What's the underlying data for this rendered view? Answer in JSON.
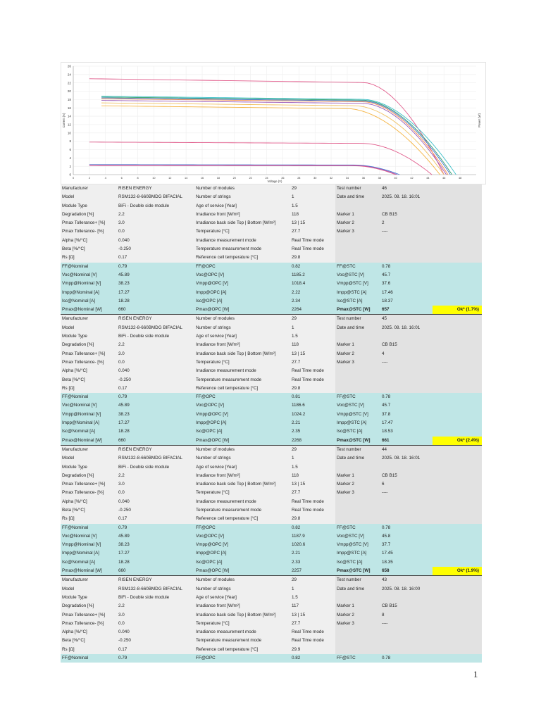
{
  "chart_data": {
    "type": "line",
    "xlabel": "Voltage (V)",
    "ylabel": "Current (A)",
    "y2label": "Power (W)",
    "xlim": [
      0,
      50
    ],
    "ylim": [
      0,
      26
    ],
    "x_ticks": [
      "0",
      "2",
      "4",
      "6",
      "8",
      "10",
      "12",
      "14",
      "16",
      "18",
      "20",
      "22",
      "24",
      "26",
      "28",
      "30",
      "32",
      "34",
      "36",
      "38",
      "40",
      "42",
      "44",
      "46",
      "48"
    ],
    "y_ticks": [
      "0",
      "2",
      "4",
      "6",
      "8",
      "10",
      "12",
      "14",
      "16",
      "18",
      "20",
      "22",
      "24",
      "26"
    ],
    "grid": true,
    "series": [
      {
        "color": "#e05a8a",
        "isc": 23.0,
        "voc": 46.0,
        "vstart": 2.0,
        "knee": 36
      },
      {
        "color": "#e05a8a",
        "isc": 7.8,
        "voc": 44.5,
        "vstart": 2.0,
        "knee": 36
      },
      {
        "color": "#3bbfc8",
        "isc": 18.8,
        "voc": 47.5,
        "vstart": 3.5,
        "knee": 36
      },
      {
        "color": "#2e9e6a",
        "isc": 18.6,
        "voc": 47.0,
        "vstart": 3.5,
        "knee": 36
      },
      {
        "color": "#4878d0",
        "isc": 18.4,
        "voc": 46.8,
        "vstart": 3.5,
        "knee": 36
      },
      {
        "color": "#f28c4a",
        "isc": 18.2,
        "voc": 46.5,
        "vstart": 3.5,
        "knee": 36
      },
      {
        "color": "#9b59b6",
        "isc": 17.8,
        "voc": 46.3,
        "vstart": 3.5,
        "knee": 36
      },
      {
        "color": "#f0c060",
        "isc": 17.2,
        "voc": 46.0,
        "vstart": 3.5,
        "knee": 35
      },
      {
        "color": "#f5b340",
        "isc": 16.5,
        "voc": 45.5,
        "vstart": 3.5,
        "knee": 34
      },
      {
        "color": "#4878d0",
        "isc": 2.4,
        "voc": 40.5,
        "vstart": 2.0,
        "knee": 35
      },
      {
        "color": "#9b59b6",
        "isc": 2.3,
        "voc": 40.2,
        "vstart": 2.0,
        "knee": 35
      },
      {
        "color": "#e05a8a",
        "isc": 2.2,
        "voc": 40.0,
        "vstart": 2.0,
        "knee": 35
      }
    ]
  },
  "blocks": [
    {
      "gray": [
        [
          "Manufacturer",
          "RISEN ENERGY",
          "Number of modules",
          "29",
          "Test number",
          "46"
        ],
        [
          "Model",
          "RSM132-8-660BMDG BIFACIAL",
          "Number of strings",
          "1",
          "Date and time",
          "2025. 08. 18. 16:01"
        ],
        [
          "Module Type",
          "BiFi - Double side module",
          "Age of service [Year]",
          "1.5",
          "",
          ""
        ],
        [
          "Degradation [%]",
          "2.2",
          "Irradiance front [W/m²]",
          "118",
          "Marker 1",
          "CB B15"
        ],
        [
          "Pmax Tollerance+ [%]",
          "3.0",
          "Irradiance back side Top | Bottom [W/m²]",
          "13 | 15",
          "Marker 2",
          "2"
        ],
        [
          "Pmax Tollerance- [%]",
          "0.0",
          "Temperature [°C]",
          "27.7",
          "Marker 3",
          "----"
        ],
        [
          "Alpha [%/°C]",
          "0.040",
          "Irradiance measurement mode",
          "Real Time mode",
          "",
          ""
        ],
        [
          "Beta [%/°C]",
          "-0.250",
          "Temperature measurement mode",
          "Real Time mode",
          "",
          ""
        ],
        [
          "Rs [Ω]",
          "0.17",
          "Reference cell temperature [°C]",
          "29.8",
          "",
          ""
        ]
      ],
      "teal": [
        [
          "FF@Nominal",
          "0.79",
          "FF@OPC",
          "0.82",
          "FF@STC",
          "0.78"
        ],
        [
          "Voc@Nominal [V]",
          "45.89",
          "Voc@OPC [V]",
          "1185.2",
          "Voc@STC [V]",
          "45.7"
        ],
        [
          "Vmpp@Nominal [V]",
          "38.23",
          "Vmpp@OPC [V]",
          "1018.4",
          "Vmpp@STC [V]",
          "37.6"
        ],
        [
          "Impp@Nominal [A]",
          "17.27",
          "Impp@OPC [A]",
          "2.22",
          "Impp@STC [A]",
          "17.46"
        ],
        [
          "Isc@Nominal [A]",
          "18.28",
          "Isc@OPC [A]",
          "2.34",
          "Isc@STC [A]",
          "18.37"
        ],
        [
          "Pmax@Nominal [W]",
          "660",
          "Pmax@OPC [W]",
          "2264",
          "Pmax@STC [W]",
          "657"
        ]
      ],
      "result": "Ok* (1.7%)"
    },
    {
      "gray": [
        [
          "Manufacturer",
          "RISEN ENERGY",
          "Number of modules",
          "29",
          "Test number",
          "45"
        ],
        [
          "Model",
          "RSM132-8-660BMDG BIFACIAL",
          "Number of strings",
          "1",
          "Date and time",
          "2025. 08. 18. 16:01"
        ],
        [
          "Module Type",
          "BiFi - Double side module",
          "Age of service [Year]",
          "1.5",
          "",
          ""
        ],
        [
          "Degradation [%]",
          "2.2",
          "Irradiance front [W/m²]",
          "118",
          "Marker 1",
          "CB B15"
        ],
        [
          "Pmax Tollerance+ [%]",
          "3.0",
          "Irradiance back side Top | Bottom [W/m²]",
          "13 | 15",
          "Marker 2",
          "4"
        ],
        [
          "Pmax Tollerance- [%]",
          "0.0",
          "Temperature [°C]",
          "27.7",
          "Marker 3",
          "----"
        ],
        [
          "Alpha [%/°C]",
          "0.040",
          "Irradiance measurement mode",
          "Real Time mode",
          "",
          ""
        ],
        [
          "Beta [%/°C]",
          "-0.250",
          "Temperature measurement mode",
          "Real Time mode",
          "",
          ""
        ],
        [
          "Rs [Ω]",
          "0.17",
          "Reference cell temperature [°C]",
          "29.8",
          "",
          ""
        ]
      ],
      "teal": [
        [
          "FF@Nominal",
          "0.79",
          "FF@OPC",
          "0.81",
          "FF@STC",
          "0.78"
        ],
        [
          "Voc@Nominal [V]",
          "45.89",
          "Voc@OPC [V]",
          "1186.6",
          "Voc@STC [V]",
          "45.7"
        ],
        [
          "Vmpp@Nominal [V]",
          "38.23",
          "Vmpp@OPC [V]",
          "1024.2",
          "Vmpp@STC [V]",
          "37.8"
        ],
        [
          "Impp@Nominal [A]",
          "17.27",
          "Impp@OPC [A]",
          "2.21",
          "Impp@STC [A]",
          "17.47"
        ],
        [
          "Isc@Nominal [A]",
          "18.28",
          "Isc@OPC [A]",
          "2.35",
          "Isc@STC [A]",
          "18.53"
        ],
        [
          "Pmax@Nominal [W]",
          "660",
          "Pmax@OPC [W]",
          "2268",
          "Pmax@STC [W]",
          "661"
        ]
      ],
      "result": "Ok* (2.4%)"
    },
    {
      "gray": [
        [
          "Manufacturer",
          "RISEN ENERGY",
          "Number of modules",
          "29",
          "Test number",
          "44"
        ],
        [
          "Model",
          "RSM132-8-660BMDG BIFACIAL",
          "Number of strings",
          "1",
          "Date and time",
          "2025. 08. 18. 16:01"
        ],
        [
          "Module Type",
          "BiFi - Double side module",
          "Age of service [Year]",
          "1.5",
          "",
          ""
        ],
        [
          "Degradation [%]",
          "2.2",
          "Irradiance front [W/m²]",
          "118",
          "Marker 1",
          "CB B15"
        ],
        [
          "Pmax Tollerance+ [%]",
          "3.0",
          "Irradiance back side Top | Bottom [W/m²]",
          "13 | 15",
          "Marker 2",
          "6"
        ],
        [
          "Pmax Tollerance- [%]",
          "0.0",
          "Temperature [°C]",
          "27.7",
          "Marker 3",
          "----"
        ],
        [
          "Alpha [%/°C]",
          "0.040",
          "Irradiance measurement mode",
          "Real Time mode",
          "",
          ""
        ],
        [
          "Beta [%/°C]",
          "-0.250",
          "Temperature measurement mode",
          "Real Time mode",
          "",
          ""
        ],
        [
          "Rs [Ω]",
          "0.17",
          "Reference cell temperature [°C]",
          "29.8",
          "",
          ""
        ]
      ],
      "teal": [
        [
          "FF@Nominal",
          "0.79",
          "FF@OPC",
          "0.82",
          "FF@STC",
          "0.78"
        ],
        [
          "Voc@Nominal [V]",
          "45.89",
          "Voc@OPC [V]",
          "1187.9",
          "Voc@STC [V]",
          "45.8"
        ],
        [
          "Vmpp@Nominal [V]",
          "38.23",
          "Vmpp@OPC [V]",
          "1020.6",
          "Vmpp@STC [V]",
          "37.7"
        ],
        [
          "Impp@Nominal [A]",
          "17.27",
          "Impp@OPC [A]",
          "2.21",
          "Impp@STC [A]",
          "17.45"
        ],
        [
          "Isc@Nominal [A]",
          "18.28",
          "Isc@OPC [A]",
          "2.33",
          "Isc@STC [A]",
          "18.35"
        ],
        [
          "Pmax@Nominal [W]",
          "660",
          "Pmax@OPC [W]",
          "2257",
          "Pmax@STC [W]",
          "658"
        ]
      ],
      "result": "Ok* (1.9%)"
    },
    {
      "gray": [
        [
          "Manufacturer",
          "RISEN ENERGY",
          "Number of modules",
          "29",
          "Test number",
          "43"
        ],
        [
          "Model",
          "RSM132-8-660BMDG BIFACIAL",
          "Number of strings",
          "1",
          "Date and time",
          "2025. 08. 18. 16:00"
        ],
        [
          "Module Type",
          "BiFi - Double side module",
          "Age of service [Year]",
          "1.5",
          "",
          ""
        ],
        [
          "Degradation [%]",
          "2.2",
          "Irradiance front [W/m²]",
          "117",
          "Marker 1",
          "CB B15"
        ],
        [
          "Pmax Tollerance+ [%]",
          "3.0",
          "Irradiance back side Top | Bottom [W/m²]",
          "13 | 15",
          "Marker 2",
          "8"
        ],
        [
          "Pmax Tollerance- [%]",
          "0.0",
          "Temperature [°C]",
          "27.7",
          "Marker 3",
          "----"
        ],
        [
          "Alpha [%/°C]",
          "0.040",
          "Irradiance measurement mode",
          "Real Time mode",
          "",
          ""
        ],
        [
          "Beta [%/°C]",
          "-0.250",
          "Temperature measurement mode",
          "Real Time mode",
          "",
          ""
        ],
        [
          "Rs [Ω]",
          "0.17",
          "Reference cell temperature [°C]",
          "29.9",
          "",
          ""
        ]
      ],
      "teal": [
        [
          "FF@Nominal",
          "0.79",
          "FF@OPC",
          "0.82",
          "FF@STC",
          "0.78"
        ]
      ],
      "result": ""
    }
  ],
  "page_number": "1"
}
